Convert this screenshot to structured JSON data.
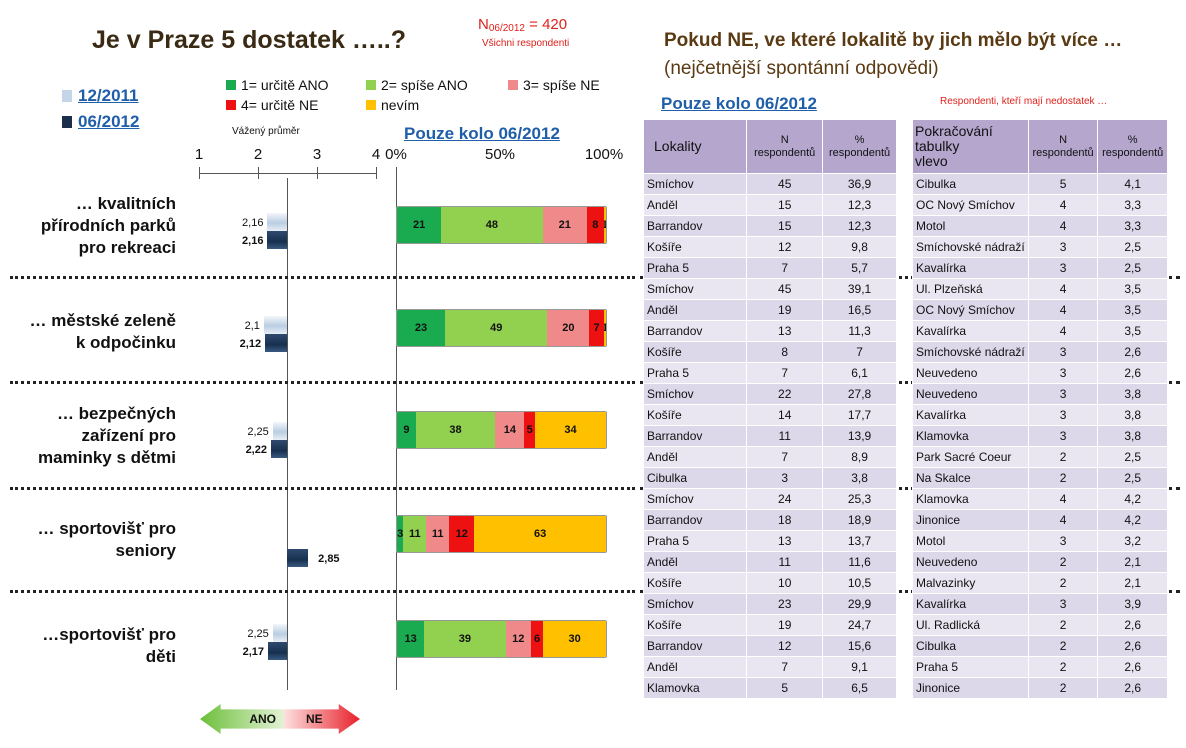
{
  "header": {
    "title": "Je v Praze 5 dostatek …..?",
    "n_prefix": "N",
    "n_sub": "06/2012",
    "n_suffix": " = 420",
    "n_note": "Všichni respondenti",
    "right_title": "Pokud NE,  ve které lokalitě by jich mělo být více …",
    "right_subtitle": "(nejčetnější spontánní odpovědi)"
  },
  "waves": [
    {
      "label": "12/2011",
      "color": "#c5d5e8"
    },
    {
      "label": "06/2012",
      "color": "#1b2f4c"
    }
  ],
  "legend": [
    {
      "label": "1= určitě ANO",
      "color": "#1aaa50"
    },
    {
      "label": "2= spíše ANO",
      "color": "#92d050"
    },
    {
      "label": "3= spíše NE",
      "color": "#f08a8a"
    },
    {
      "label": "4= určitě NE",
      "color": "#ee1111"
    },
    {
      "label": "nevím",
      "color": "#ffc000"
    }
  ],
  "mean_axis": {
    "label": "Vážený průměr",
    "ticks": [
      "1",
      "2",
      "3",
      "4"
    ]
  },
  "pct_axis": {
    "ticks": [
      "0%",
      "50%",
      "100%"
    ]
  },
  "pouze_left": "Pouze kolo 06/2012",
  "pouze_right": "Pouze kolo 06/2012",
  "note_right": "Respondenti, kteří mají nedostatek …",
  "arrows": {
    "ano": "ANO",
    "ne": "NE"
  },
  "chart_data": [
    {
      "type": "bar",
      "title": "Vážený průměr",
      "xlim": [
        1,
        4
      ],
      "ticks": [
        1,
        2,
        3,
        4
      ],
      "categories": [
        "… kvalitních přírodních parků pro rekreaci",
        "… městské zeleně k odpočinku",
        "… bezpečných zařízení pro maminky s dětmi",
        "… sportovišť pro seniory",
        "…sportovišť pro děti"
      ],
      "series": [
        {
          "name": "12/2011",
          "values": [
            2.16,
            2.1,
            2.25,
            null,
            2.25
          ]
        },
        {
          "name": "06/2012",
          "values": [
            2.16,
            2.12,
            2.22,
            2.85,
            2.17
          ]
        }
      ],
      "labels": [
        [
          "2,16",
          "2,16"
        ],
        [
          "2,1",
          "2,12"
        ],
        [
          "2,25",
          "2,22"
        ],
        [
          "",
          "2,85"
        ],
        [
          "2,25",
          "2,17"
        ]
      ]
    },
    {
      "type": "bar",
      "stacked": true,
      "title": "Pouze kolo 06/2012",
      "xlim": [
        0,
        100
      ],
      "categories": [
        "… kvalitních přírodních parků pro rekreaci",
        "… městské zeleně k odpočinku",
        "… bezpečných zařízení pro maminky s dětmi",
        "… sportovišť pro seniory",
        "…sportovišť pro děti"
      ],
      "series": [
        {
          "name": "1= určitě ANO",
          "values": [
            21,
            23,
            9,
            3,
            13
          ]
        },
        {
          "name": "2= spíše ANO",
          "values": [
            48,
            49,
            38,
            11,
            39
          ]
        },
        {
          "name": "3= spíše NE",
          "values": [
            21,
            20,
            14,
            11,
            12
          ]
        },
        {
          "name": "4= určitě NE",
          "values": [
            8,
            7,
            5,
            12,
            6
          ]
        },
        {
          "name": "nevím",
          "values": [
            1,
            1,
            34,
            63,
            30
          ]
        }
      ]
    }
  ],
  "items": [
    "… kvalitních\npřírodních parků\npro rekreaci",
    "… městské zeleně\nk odpočinku",
    "… bezpečných\nzařízení pro\nmaminky s dětmi",
    "… sportovišť pro\nseniory",
    "…sportovišť pro\nděti"
  ],
  "table_left": {
    "headers": [
      "Lokality",
      "N\nrespondentů",
      "%\nrespondentů"
    ],
    "rows": [
      [
        "Smíchov",
        "45",
        "36,9"
      ],
      [
        "Anděl",
        "15",
        "12,3"
      ],
      [
        "Barrandov",
        "15",
        "12,3"
      ],
      [
        "Košíře",
        "12",
        "9,8"
      ],
      [
        "Praha 5",
        "7",
        "5,7"
      ],
      [
        "Smíchov",
        "45",
        "39,1"
      ],
      [
        "Anděl",
        "19",
        "16,5"
      ],
      [
        "Barrandov",
        "13",
        "11,3"
      ],
      [
        "Košíře",
        "8",
        "7"
      ],
      [
        "Praha 5",
        "7",
        "6,1"
      ],
      [
        "Smíchov",
        "22",
        "27,8"
      ],
      [
        "Košíře",
        "14",
        "17,7"
      ],
      [
        "Barrandov",
        "11",
        "13,9"
      ],
      [
        "Anděl",
        "7",
        "8,9"
      ],
      [
        "Cibulka",
        "3",
        "3,8"
      ],
      [
        "Smíchov",
        "24",
        "25,3"
      ],
      [
        "Barrandov",
        "18",
        "18,9"
      ],
      [
        "Praha 5",
        "13",
        "13,7"
      ],
      [
        "Anděl",
        "11",
        "11,6"
      ],
      [
        "Košíře",
        "10",
        "10,5"
      ],
      [
        "Smíchov",
        "23",
        "29,9"
      ],
      [
        "Košíře",
        "19",
        "24,7"
      ],
      [
        "Barrandov",
        "12",
        "15,6"
      ],
      [
        "Anděl",
        "7",
        "9,1"
      ],
      [
        "Klamovka",
        "5",
        "6,5"
      ]
    ]
  },
  "table_right": {
    "headers": [
      "Pokračování\ntabulky\nvlevo",
      "N\nrespondentů",
      "%\nrespondentů"
    ],
    "rows": [
      [
        "Cibulka",
        "5",
        "4,1"
      ],
      [
        "OC Nový Smíchov",
        "4",
        "3,3"
      ],
      [
        "Motol",
        "4",
        "3,3"
      ],
      [
        "Smíchovské nádraží",
        "3",
        "2,5"
      ],
      [
        "Kavalírka",
        "3",
        "2,5"
      ],
      [
        "Ul. Plzeňská",
        "4",
        "3,5"
      ],
      [
        "OC Nový Smíchov",
        "4",
        "3,5"
      ],
      [
        "Kavalírka",
        "4",
        "3,5"
      ],
      [
        "Smíchovské nádraží",
        "3",
        "2,6"
      ],
      [
        "Neuvedeno",
        "3",
        "2,6"
      ],
      [
        "Neuvedeno",
        "3",
        "3,8"
      ],
      [
        "Kavalírka",
        "3",
        "3,8"
      ],
      [
        "Klamovka",
        "3",
        "3,8"
      ],
      [
        "Park Sacré Coeur",
        "2",
        "2,5"
      ],
      [
        "Na Skalce",
        "2",
        "2,5"
      ],
      [
        "Klamovka",
        "4",
        "4,2"
      ],
      [
        "Jinonice",
        "4",
        "4,2"
      ],
      [
        "Motol",
        "3",
        "3,2"
      ],
      [
        "Neuvedeno",
        "2",
        "2,1"
      ],
      [
        "Malvazinky",
        "2",
        "2,1"
      ],
      [
        "Kavalírka",
        "3",
        "3,9"
      ],
      [
        "Ul. Radlická",
        "2",
        "2,6"
      ],
      [
        "Cibulka",
        "2",
        "2,6"
      ],
      [
        "Praha 5",
        "2",
        "2,6"
      ],
      [
        "Jinonice",
        "2",
        "2,6"
      ]
    ]
  }
}
